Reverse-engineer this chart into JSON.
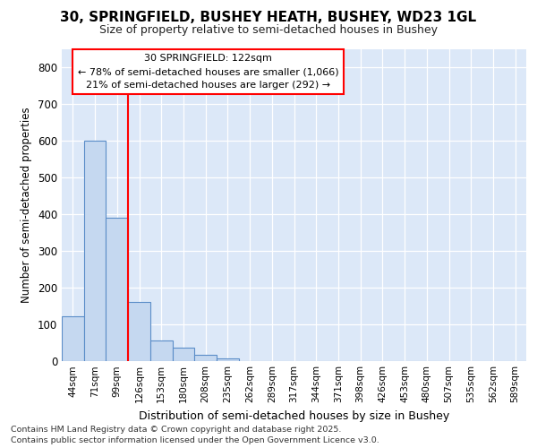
{
  "title_line1": "30, SPRINGFIELD, BUSHEY HEATH, BUSHEY, WD23 1GL",
  "title_line2": "Size of property relative to semi-detached houses in Bushey",
  "xlabel": "Distribution of semi-detached houses by size in Bushey",
  "ylabel": "Number of semi-detached properties",
  "categories": [
    "44sqm",
    "71sqm",
    "99sqm",
    "126sqm",
    "153sqm",
    "180sqm",
    "208sqm",
    "235sqm",
    "262sqm",
    "289sqm",
    "317sqm",
    "344sqm",
    "371sqm",
    "398sqm",
    "426sqm",
    "453sqm",
    "480sqm",
    "507sqm",
    "535sqm",
    "562sqm",
    "589sqm"
  ],
  "values": [
    120,
    600,
    390,
    160,
    55,
    35,
    15,
    5,
    0,
    0,
    0,
    0,
    0,
    0,
    0,
    0,
    0,
    0,
    0,
    0,
    0
  ],
  "bar_color": "#c5d8f0",
  "bar_edge_color": "#5b8dc8",
  "vline_color": "red",
  "vline_pos": 2.5,
  "annotation_line1": "30 SPRINGFIELD: 122sqm",
  "annotation_line2": "← 78% of semi-detached houses are smaller (1,066)",
  "annotation_line3": "21% of semi-detached houses are larger (292) →",
  "ylim": [
    0,
    850
  ],
  "yticks": [
    0,
    100,
    200,
    300,
    400,
    500,
    600,
    700,
    800
  ],
  "footer_line1": "Contains HM Land Registry data © Crown copyright and database right 2025.",
  "footer_line2": "Contains public sector information licensed under the Open Government Licence v3.0.",
  "bg_color": "#ffffff",
  "plot_bg_color": "#dce8f8"
}
